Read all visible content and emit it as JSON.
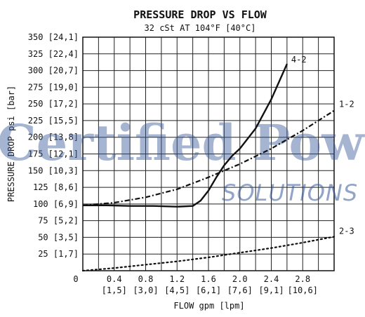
{
  "chart_data": {
    "type": "line",
    "title": "PRESSURE DROP VS FLOW",
    "subtitle": "32 cSt AT 104°F [40°C]",
    "xlabel": "FLOW gpm [lpm]",
    "ylabel": "PRESSURE DROP psi [bar]",
    "xlim": [
      0,
      3.2
    ],
    "ylim": [
      0,
      350
    ],
    "grid": true,
    "x_ticks": [
      {
        "value": 0,
        "label": "0",
        "sub": ""
      },
      {
        "value": 0.4,
        "label": "0.4",
        "sub": "[1,5]"
      },
      {
        "value": 0.8,
        "label": "0.8",
        "sub": "[3,0]"
      },
      {
        "value": 1.2,
        "label": "1.2",
        "sub": "[4,5]"
      },
      {
        "value": 1.6,
        "label": "1.6",
        "sub": "[6,1]"
      },
      {
        "value": 2.0,
        "label": "2.0",
        "sub": "[7,6]"
      },
      {
        "value": 2.4,
        "label": "2.4",
        "sub": "[9,1]"
      },
      {
        "value": 2.8,
        "label": "2.8",
        "sub": "[10,6]"
      }
    ],
    "y_ticks": [
      {
        "value": 25,
        "label": "25 [1,7]"
      },
      {
        "value": 50,
        "label": "50 [3,5]"
      },
      {
        "value": 75,
        "label": "75 [5,2]"
      },
      {
        "value": 100,
        "label": "100 [6,9]"
      },
      {
        "value": 125,
        "label": "125 [8,6]"
      },
      {
        "value": 150,
        "label": "150 [10,3]"
      },
      {
        "value": 175,
        "label": "175 [12,1]"
      },
      {
        "value": 200,
        "label": "200 [13,8]"
      },
      {
        "value": 225,
        "label": "225 [15,5]"
      },
      {
        "value": 250,
        "label": "250 [17,2]"
      },
      {
        "value": 275,
        "label": "275 [19,0]"
      },
      {
        "value": 300,
        "label": "300 [20,7]"
      },
      {
        "value": 325,
        "label": "325 [22,4]"
      },
      {
        "value": 350,
        "label": "350 [24,1]"
      }
    ],
    "series": [
      {
        "name": "4-2",
        "style": "solid",
        "x": [
          0,
          0.3,
          0.6,
          0.9,
          1.2,
          1.4,
          1.5,
          1.6,
          1.7,
          1.8,
          1.9,
          2.0,
          2.2,
          2.4,
          2.6
        ],
        "y": [
          98,
          98,
          97,
          97,
          96,
          97,
          105,
          120,
          140,
          158,
          172,
          183,
          213,
          257,
          310
        ]
      },
      {
        "name": "1-2",
        "style": "dash-dot",
        "x": [
          0,
          0.4,
          0.8,
          1.2,
          1.6,
          2.0,
          2.4,
          2.8,
          3.2
        ],
        "y": [
          98,
          102,
          110,
          122,
          140,
          160,
          183,
          210,
          240
        ]
      },
      {
        "name": "2-3",
        "style": "dotted",
        "x": [
          0,
          0.4,
          0.8,
          1.2,
          1.6,
          2.0,
          2.4,
          2.8,
          3.2
        ],
        "y": [
          0,
          4,
          9,
          14,
          20,
          27,
          34,
          42,
          51
        ]
      }
    ]
  },
  "watermark": {
    "line1": "Certified Power",
    "line2": "SOLUTIONS"
  }
}
